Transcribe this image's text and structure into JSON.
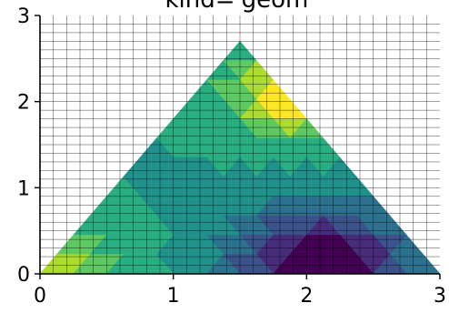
{
  "chart_data": {
    "type": "contourf-triangulation",
    "title": "kind='geom'",
    "xlabel": "",
    "ylabel": "",
    "xlim": [
      0,
      3
    ],
    "ylim": [
      0,
      3
    ],
    "xticks": [
      0,
      1,
      2,
      3
    ],
    "yticks": [
      0,
      1,
      2,
      3
    ],
    "grid": true,
    "grid_minor_step": 0.1,
    "colormap": "viridis",
    "levels": [
      "#440154",
      "#472d7b",
      "#3b528b",
      "#2c728e",
      "#21918c",
      "#28ae80",
      "#5ec962",
      "#addc30",
      "#fde725"
    ],
    "triangle": [
      [
        0,
        0
      ],
      [
        3,
        0
      ],
      [
        1.5,
        2.7
      ]
    ],
    "resolution": 12,
    "note_field": [
      {
        "x": 2.1,
        "y": 0.1,
        "w": -1.6,
        "s": 0.45
      },
      {
        "x": 1.95,
        "y": 2.1,
        "w": 1.3,
        "s": 0.35
      },
      {
        "x": 0.0,
        "y": 0.0,
        "w": 0.9,
        "s": 0.4
      }
    ]
  }
}
